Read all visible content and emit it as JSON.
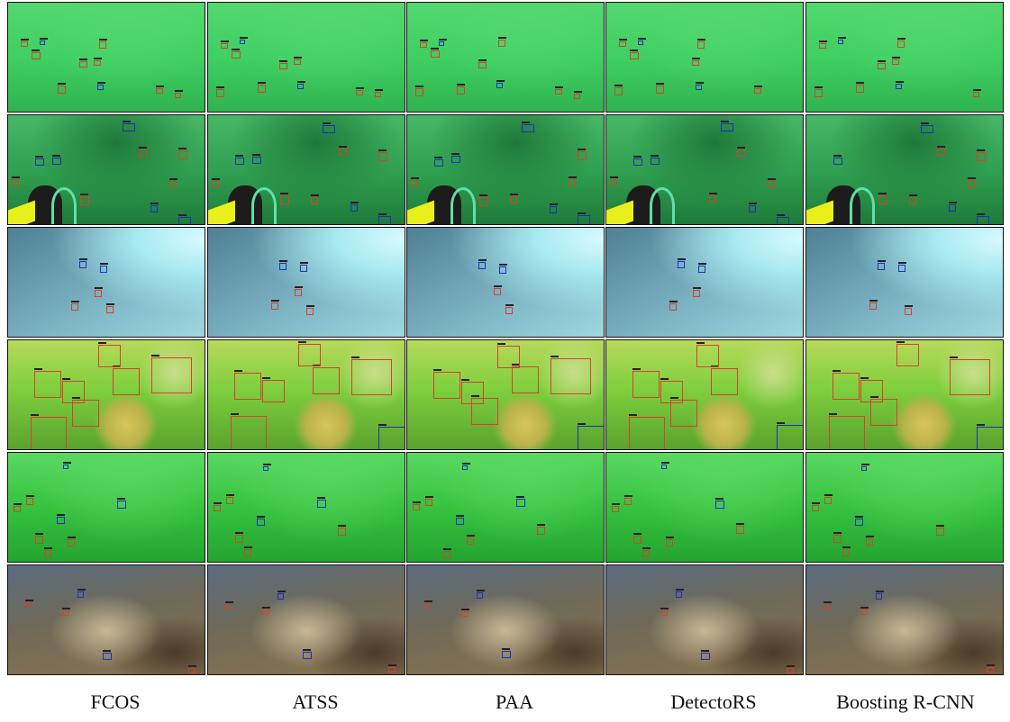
{
  "figure": {
    "methods": [
      "FCOS",
      "ATSS",
      "PAA",
      "DetectoRS",
      "Boosting R-CNN"
    ],
    "rows": [
      {
        "scene": "green-seabed-sparse",
        "colors": [
          "#3fcf62",
          "#2fb34f",
          "#52d86f"
        ]
      },
      {
        "scene": "green-diver-rocks",
        "colors": [
          "#2e9e4f",
          "#1f7a3a",
          "#46b865"
        ]
      },
      {
        "scene": "blue-rocky-bright",
        "colors": [
          "#7fb7c7",
          "#4f7f93",
          "#d8fbff"
        ]
      },
      {
        "scene": "green-scallop-closeup",
        "colors": [
          "#7ecf3e",
          "#5aa32e",
          "#b8d95a"
        ]
      },
      {
        "scene": "green-seabed-dense",
        "colors": [
          "#36c23f",
          "#23a42f",
          "#59d860"
        ]
      },
      {
        "scene": "brown-kelp-reef",
        "colors": [
          "#6f6a58",
          "#8a7350",
          "#5a6a80"
        ]
      }
    ],
    "box_colors": {
      "false_positive_or_other": "#d9402a",
      "ground_truth_or_miss": "#1d2fc4"
    }
  }
}
